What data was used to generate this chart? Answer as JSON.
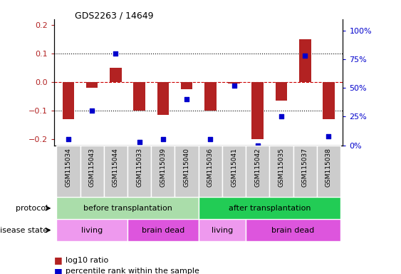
{
  "title": "GDS2263 / 14649",
  "samples": [
    "GSM115034",
    "GSM115043",
    "GSM115044",
    "GSM115033",
    "GSM115039",
    "GSM115040",
    "GSM115036",
    "GSM115041",
    "GSM115042",
    "GSM115035",
    "GSM115037",
    "GSM115038"
  ],
  "log10_ratio": [
    -0.13,
    -0.02,
    0.05,
    -0.1,
    -0.115,
    -0.025,
    -0.1,
    -0.005,
    -0.2,
    -0.065,
    0.15,
    -0.13
  ],
  "percentile_rank": [
    5,
    30,
    80,
    3,
    5,
    40,
    5,
    52,
    0,
    25,
    78,
    8
  ],
  "ylim_left": [
    -0.22,
    0.22
  ],
  "ylim_right": [
    0,
    110
  ],
  "yticks_left": [
    -0.2,
    -0.1,
    0.0,
    0.1,
    0.2
  ],
  "yticks_right": [
    0,
    25,
    50,
    75,
    100
  ],
  "ytick_labels_right": [
    "0%",
    "25%",
    "50%",
    "75%",
    "100%"
  ],
  "dotted_hlines": [
    -0.1,
    0.1
  ],
  "red_color": "#b22222",
  "blue_color": "#0000cc",
  "dashed_red_color": "#cc0000",
  "protocol_groups": [
    {
      "label": "before transplantation",
      "start": 0,
      "end": 6,
      "color": "#aaddaa"
    },
    {
      "label": "after transplantation",
      "start": 6,
      "end": 12,
      "color": "#22cc55"
    }
  ],
  "disease_groups": [
    {
      "label": "living",
      "start": 0,
      "end": 3,
      "color": "#ee99ee"
    },
    {
      "label": "brain dead",
      "start": 3,
      "end": 6,
      "color": "#dd55dd"
    },
    {
      "label": "living",
      "start": 6,
      "end": 8,
      "color": "#ee99ee"
    },
    {
      "label": "brain dead",
      "start": 8,
      "end": 12,
      "color": "#dd55dd"
    }
  ],
  "bar_width": 0.5,
  "dot_size": 22,
  "legend_items": [
    {
      "label": "log10 ratio",
      "color": "#b22222"
    },
    {
      "label": "percentile rank within the sample",
      "color": "#0000cc"
    }
  ],
  "protocol_label": "protocol",
  "disease_label": "disease state",
  "sample_label_bg": "#cccccc",
  "sample_label_border": "#aaaaaa"
}
